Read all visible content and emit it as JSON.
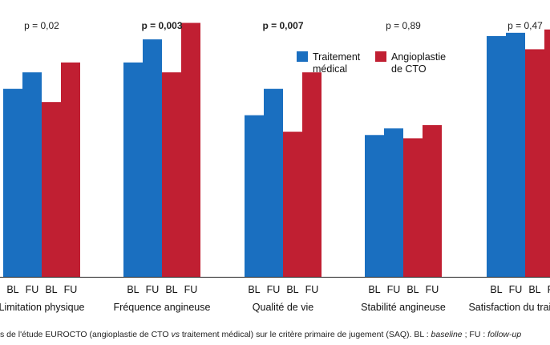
{
  "chart_data": {
    "type": "bar",
    "groups": [
      {
        "label": "Limitation physique",
        "p_value": "p = 0,02",
        "p_bold": false,
        "ticks": [
          "BL",
          "FU",
          "BL",
          "FU"
        ],
        "values": {
          "Traitement médical": [
            57,
            62
          ],
          "Angioplastie de CTO": [
            53,
            65
          ]
        }
      },
      {
        "label": "Fréquence angineuse",
        "p_value": "p = 0,003",
        "p_bold": true,
        "ticks": [
          "BL",
          "FU",
          "BL",
          "FU"
        ],
        "values": {
          "Traitement médical": [
            65,
            72
          ],
          "Angioplastie de CTO": [
            62,
            77
          ]
        }
      },
      {
        "label": "Qualité de vie",
        "p_value": "p = 0,007",
        "p_bold": true,
        "ticks": [
          "BL",
          "FU",
          "BL",
          "FU"
        ],
        "values": {
          "Traitement médical": [
            49,
            57
          ],
          "Angioplastie de CTO": [
            44,
            62
          ]
        }
      },
      {
        "label": "Stabilité angineuse",
        "p_value": "p = 0,89",
        "p_bold": false,
        "ticks": [
          "BL",
          "FU",
          "BL",
          "FU"
        ],
        "values": {
          "Traitement médical": [
            43,
            45
          ],
          "Angioplastie de CTO": [
            42,
            46
          ]
        }
      },
      {
        "label": "Satisfaction du traitement",
        "p_value": "p = 0,47",
        "p_bold": false,
        "ticks": [
          "BL",
          "FU",
          "BL",
          "FU"
        ],
        "values": {
          "Traitement médical": [
            73,
            74
          ],
          "Angioplastie de CTO": [
            69,
            75
          ]
        }
      }
    ],
    "series": [
      {
        "name": "Traitement médical",
        "color": "#1a6fc0"
      },
      {
        "name": "Angioplastie de CTO",
        "color": "#c01f32"
      }
    ],
    "ylim": [
      0,
      100
    ],
    "grid": false,
    "legend_position": "top-right"
  },
  "caption": {
    "prefix": "s de l'étude EUROCTO (angioplastie de CTO ",
    "vs": "vs",
    "middle": " traitement médical) sur le critère primaire de jugement (SAQ). BL : ",
    "baseline": "baseline",
    "sep": " ; FU : ",
    "followup": "follow-up"
  }
}
